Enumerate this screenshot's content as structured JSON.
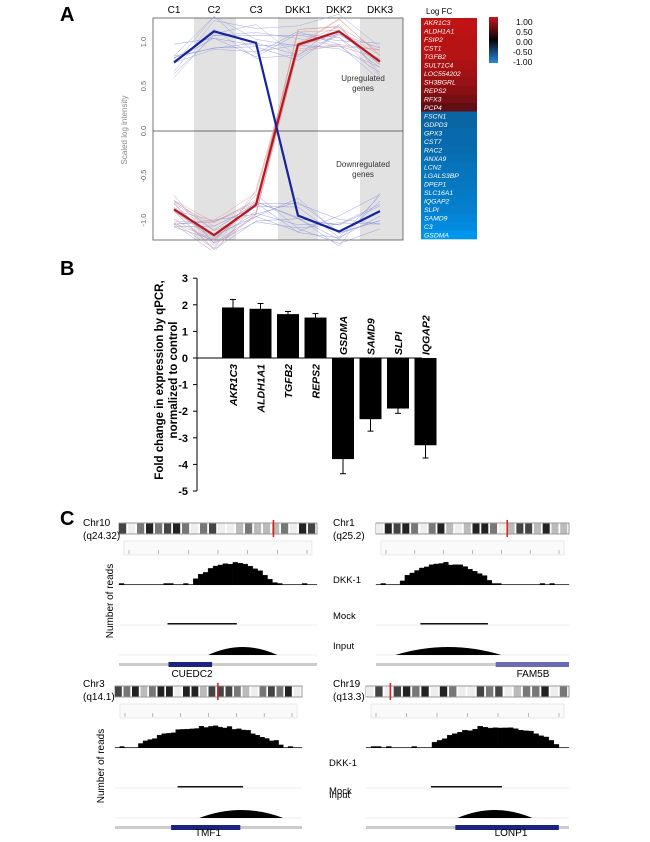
{
  "panels": {
    "a": "A",
    "b": "B",
    "c": "C"
  },
  "panel_a": {
    "columns": [
      "C1",
      "C2",
      "C3",
      "DKK1",
      "DKK2",
      "DKK3"
    ],
    "ylabel": "Scaled log intensity",
    "yticks": [
      "1.0",
      "0.5",
      "0.0",
      "-0.5",
      "-1.0"
    ],
    "up_label": [
      "Upregulated",
      "genes"
    ],
    "down_label": [
      "Downregulated",
      "genes"
    ],
    "colors": {
      "red": "#b8171f",
      "blue": "#16239a",
      "shade": "#e2e2e2"
    },
    "up_mean": [
      0.77,
      1.12,
      0.99,
      0.97,
      1.12,
      0.78
    ],
    "down_mean": [
      -0.88,
      -1.17,
      -0.83,
      -0.95,
      -1.13,
      -0.9
    ]
  },
  "heatmap": {
    "title": "Log FC",
    "genes": [
      "AKR1C3",
      "ALDH1A1",
      "FSIP2",
      "CST1",
      "TGFB2",
      "SULT1C4",
      "LOC554202",
      "SH3BGRL",
      "REPS2",
      "RFX3",
      "PCP4",
      "FSCN1",
      "GDPD3",
      "GPX3",
      "CST7",
      "RAC2",
      "ANXA9",
      "LCN2",
      "LGALS3BP",
      "DPEP1",
      "SLC16A1",
      "IQGAP2",
      "SLPI",
      "SAMD9",
      "C3",
      "GSDMA"
    ],
    "values": [
      0.95,
      0.93,
      0.9,
      0.9,
      0.88,
      0.82,
      0.75,
      0.7,
      0.62,
      0.5,
      0.35,
      -0.55,
      -0.55,
      -0.6,
      -0.6,
      -0.62,
      -0.65,
      -0.68,
      -0.7,
      -0.72,
      -0.75,
      -0.78,
      -0.8,
      -0.85,
      -0.9,
      -1.0
    ],
    "legend_ticks": [
      "1.00",
      "0.50",
      "0.00",
      "-0.50",
      "-1.00"
    ]
  },
  "chart_data": {
    "type": "bar",
    "categories": [
      "AKR1C3",
      "ALDH1A1",
      "TGFB2",
      "REPS2",
      "GSDMA",
      "SAMD9",
      "SLPI",
      "IQGAP2"
    ],
    "values": [
      1.9,
      1.85,
      1.65,
      1.52,
      -3.8,
      -2.3,
      -1.9,
      -3.28
    ],
    "errors": [
      0.3,
      0.2,
      0.1,
      0.15,
      0.55,
      0.45,
      0.18,
      0.48
    ],
    "ylabel": [
      "Fold change in expression by qPCR,",
      "normalized to control"
    ],
    "ylim": [
      -5,
      3
    ],
    "yticks": [
      "3",
      "2",
      "1",
      "0",
      "-1",
      "-2",
      "-3",
      "-4",
      "-5"
    ],
    "grid": false
  },
  "panel_c": {
    "ylabel": "Number of reads",
    "track_labels": [
      "DKK-1",
      "Mock",
      "Input"
    ],
    "loci": [
      {
        "chr": "Chr10",
        "band": "(q24.32)",
        "gene": "CUEDC2"
      },
      {
        "chr": "Chr1",
        "band": "(q25.2)",
        "gene": "FAM5B"
      },
      {
        "chr": "Chr3",
        "band": "(q14.1)",
        "gene": "TMF1"
      },
      {
        "chr": "Chr19",
        "band": "(q13.3)",
        "gene": "LONP1"
      }
    ]
  }
}
